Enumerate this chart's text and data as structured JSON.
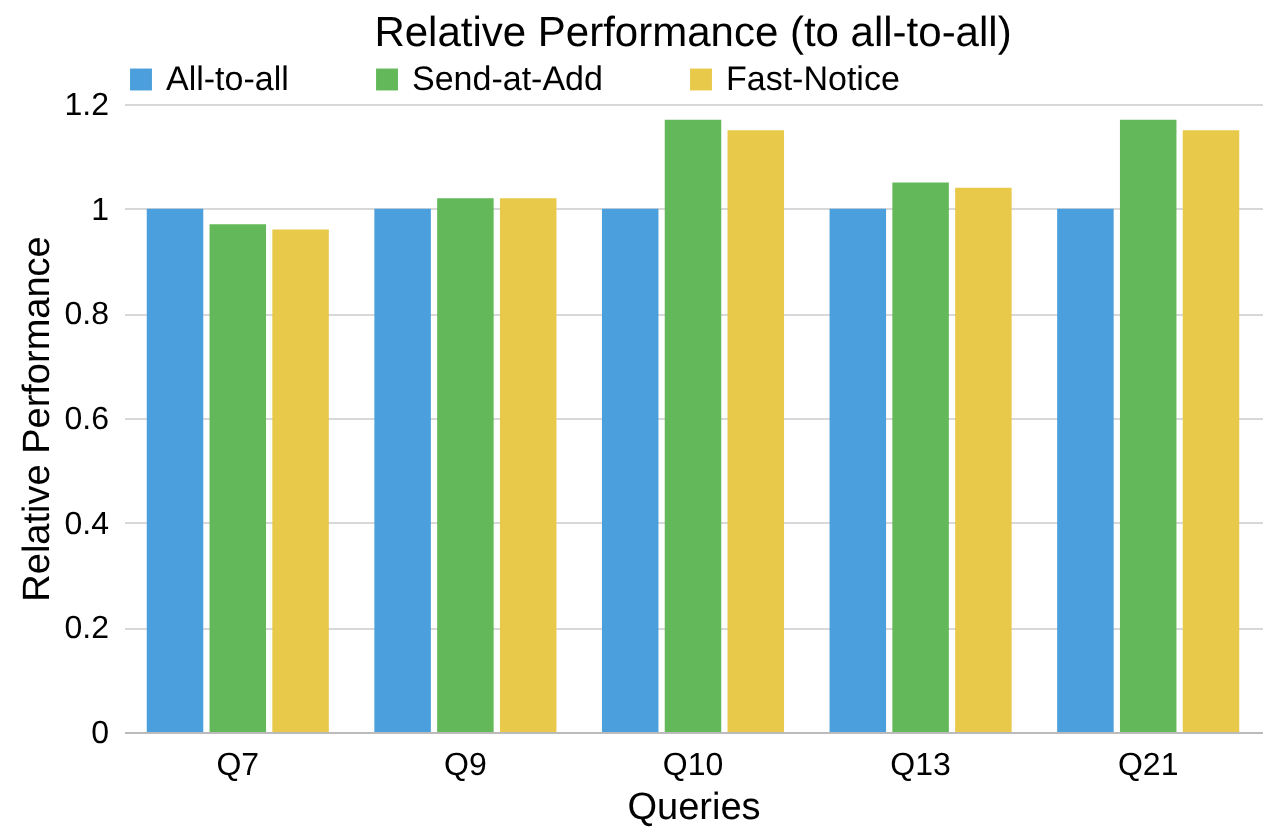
{
  "chart_data": {
    "type": "bar",
    "title": "Relative Performance (to all-to-all)",
    "xlabel": "Queries",
    "ylabel": "Relative Performance",
    "categories": [
      "Q7",
      "Q9",
      "Q10",
      "Q13",
      "Q21"
    ],
    "series": [
      {
        "name": "All-to-all",
        "color": "#4b9fdc",
        "values": [
          1,
          1,
          1,
          1,
          1
        ]
      },
      {
        "name": "Send-at-Add",
        "color": "#63b95a",
        "values": [
          0.97,
          1.02,
          1.17,
          1.05,
          1.17
        ]
      },
      {
        "name": "Fast-Notice",
        "color": "#e8c94a",
        "values": [
          0.96,
          1.02,
          1.15,
          1.04,
          1.15
        ]
      }
    ],
    "ylim": [
      0,
      1.2
    ],
    "yticks": [
      0,
      0.2,
      0.4,
      0.6,
      0.8,
      1,
      1.2
    ],
    "grid": "y",
    "legend": "top"
  }
}
